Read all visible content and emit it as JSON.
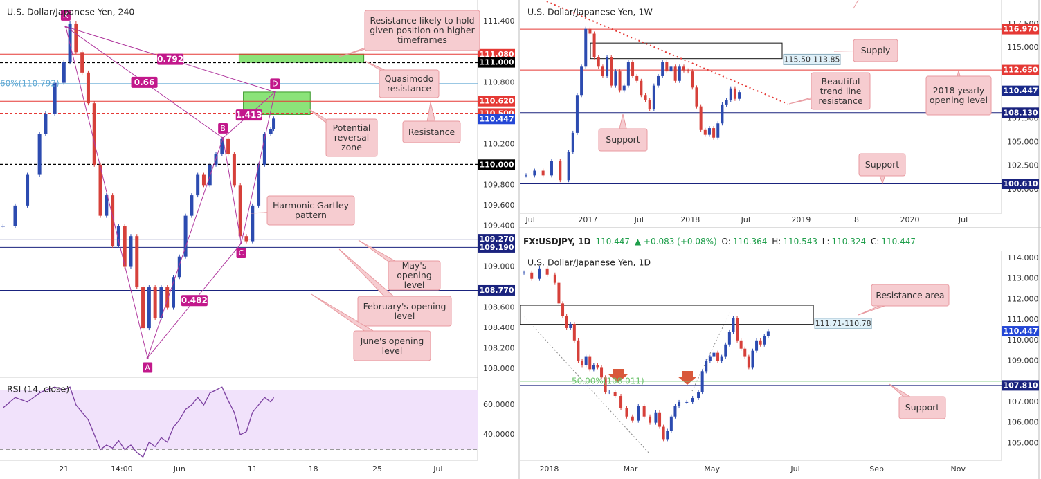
{
  "chart_data": [
    {
      "type": "candlestick",
      "title": "U.S. Dollar/Japanese Yen, 240",
      "x": [
        0,
        4,
        8,
        12,
        14,
        17,
        20,
        22,
        24,
        26,
        28,
        30,
        32,
        34,
        36,
        38,
        40,
        42,
        44,
        46,
        48,
        50,
        52,
        54,
        56,
        58,
        60,
        62,
        64,
        66,
        68,
        70,
        72,
        74,
        76,
        78,
        80,
        82,
        84,
        86,
        88,
        89
      ],
      "values": [
        109.4,
        109.6,
        109.9,
        110.3,
        110.5,
        110.8,
        111.0,
        111.38,
        111.1,
        110.9,
        110.6,
        110.0,
        109.5,
        109.7,
        109.2,
        109.4,
        109.0,
        109.3,
        108.8,
        108.4,
        108.8,
        108.5,
        108.8,
        108.6,
        108.9,
        109.1,
        109.5,
        109.7,
        109.9,
        109.8,
        110.0,
        110.1,
        110.25,
        110.1,
        109.8,
        109.3,
        109.25,
        109.6,
        110.0,
        110.3,
        110.35,
        110.45
      ],
      "xlim": [
        -1,
        156
      ],
      "ylim": [
        107.92,
        111.61
      ],
      "xticks": [
        {
          "value": 20,
          "label": "21"
        },
        {
          "value": 39,
          "label": "14:00"
        },
        {
          "value": 58,
          "label": "Jun"
        },
        {
          "value": 82,
          "label": "11"
        },
        {
          "value": 102,
          "label": "18"
        },
        {
          "value": 123,
          "label": "25"
        },
        {
          "value": 143,
          "label": "Jul"
        }
      ],
      "yticks": [
        {
          "value": 111.4,
          "label": "111.400"
        },
        {
          "value": 110.8,
          "label": "110.800"
        },
        {
          "value": 110.2,
          "label": "110.200"
        },
        {
          "value": 109.8,
          "label": "109.800"
        },
        {
          "value": 109.6,
          "label": "109.600"
        },
        {
          "value": 109.4,
          "label": "109.400"
        },
        {
          "value": 109.0,
          "label": "109.000"
        },
        {
          "value": 108.6,
          "label": "108.600"
        },
        {
          "value": 108.4,
          "label": "108.400"
        },
        {
          "value": 108.2,
          "label": "108.200"
        },
        {
          "value": 108.0,
          "label": "108.000"
        }
      ],
      "levels": [
        {
          "value": 111.08,
          "label": "111.080",
          "color": "#e53935"
        },
        {
          "value": 111.0,
          "label": "111.000",
          "color": "#000000",
          "dash": true
        },
        {
          "value": 110.62,
          "label": "110.620",
          "color": "#e53935"
        },
        {
          "value": 110.5,
          "label": "110.500",
          "color": "#e53935",
          "dash": true
        },
        {
          "value": 110.447,
          "label": "110.447",
          "color": "#2447d6",
          "line": false
        },
        {
          "value": 110.0,
          "label": "110.000",
          "color": "#000000",
          "dash": true
        },
        {
          "value": 109.27,
          "label": "109.270",
          "color": "#1a237e"
        },
        {
          "value": 109.19,
          "label": "109.190",
          "color": "#1a237e"
        },
        {
          "value": 108.77,
          "label": "108.770",
          "color": "#1a237e"
        }
      ],
      "fib": {
        "value": 110.792,
        "label": "60%(110.792)",
        "color": "#5fa8d3"
      },
      "zones": [
        {
          "from": 111.0,
          "to": 111.08,
          "x": [
            77.6,
            118.6
          ],
          "color": "#7ee06a"
        },
        {
          "from": 110.49,
          "to": 110.71,
          "x": [
            79,
            101
          ],
          "color": "#7ee06a"
        }
      ],
      "pattern": [
        {
          "label": "X",
          "x": 20.6,
          "y": 111.35
        },
        {
          "label": "A",
          "x": 47.5,
          "y": 108.11
        },
        {
          "label": "B",
          "x": 72.3,
          "y": 110.26
        },
        {
          "label": "C",
          "x": 78.3,
          "y": 109.23
        },
        {
          "label": "D",
          "x": 89.4,
          "y": 110.71
        }
      ],
      "ratios": [
        0.792,
        0.66,
        1.413,
        0.482
      ],
      "annotations": [
        "Resistance likely to hold given position on higher timeframes",
        "Quasimodo resistance",
        "Potential reversal zone",
        "Resistance",
        "Harmonic Gartley pattern",
        "May's opening level",
        "February's opening level",
        "June's opening level"
      ]
    },
    {
      "type": "line",
      "title": "RSI (14, close)",
      "x": [
        0,
        4,
        8,
        12,
        14,
        17,
        20,
        22,
        24,
        26,
        28,
        30,
        32,
        34,
        36,
        38,
        40,
        42,
        44,
        46,
        48,
        50,
        52,
        54,
        56,
        58,
        60,
        62,
        64,
        66,
        68,
        70,
        72,
        74,
        76,
        78,
        80,
        82,
        84,
        86,
        88,
        89
      ],
      "values": [
        58,
        65,
        62,
        68,
        70,
        72,
        70,
        72,
        60,
        55,
        50,
        40,
        30,
        33,
        31,
        36,
        30,
        33,
        28,
        25,
        35,
        32,
        38,
        35,
        45,
        50,
        57,
        60,
        65,
        60,
        68,
        70,
        72,
        63,
        55,
        40,
        42,
        55,
        60,
        65,
        62,
        65
      ],
      "color": "#7b3fa0",
      "band": [
        30,
        70
      ],
      "xlim": [
        -1,
        156
      ],
      "ylim": [
        22.8,
        78.6
      ],
      "yticks": [
        {
          "value": 60,
          "label": "60.0000"
        },
        {
          "value": 40,
          "label": "40.0000"
        }
      ]
    },
    {
      "type": "candlestick",
      "title": "U.S. Dollar/Japanese Yen, 1W",
      "x": [
        0,
        4,
        8,
        12,
        16,
        20,
        22,
        24,
        26,
        28,
        30,
        32,
        34,
        36,
        38,
        40,
        42,
        44,
        46,
        48,
        50,
        52,
        54,
        56,
        58,
        60,
        62,
        64,
        66,
        68,
        70,
        72,
        74,
        76,
        78,
        80,
        82,
        84,
        86,
        88,
        90,
        92,
        94,
        96,
        98,
        100
      ],
      "values": [
        101.5,
        102,
        101.5,
        103,
        101,
        104,
        106,
        110,
        113,
        117,
        116.5,
        114,
        113,
        112,
        114,
        111,
        112.5,
        110.5,
        111,
        113.5,
        112,
        111.5,
        110,
        109.5,
        108.5,
        111,
        112,
        113.5,
        112.5,
        113,
        111.5,
        113,
        112.6,
        112.5,
        110.8,
        108.8,
        106.3,
        105.8,
        106.5,
        105.5,
        107,
        109,
        109.5,
        110.7,
        109.6,
        110.3
      ],
      "xlim": [
        -2.6,
        223
      ],
      "ylim": [
        97.5,
        120.05
      ],
      "xticks": [
        {
          "value": 2,
          "label": "Jul"
        },
        {
          "value": 29,
          "label": "2017"
        },
        {
          "value": 53,
          "label": "Jul"
        },
        {
          "value": 77,
          "label": "2018"
        },
        {
          "value": 103,
          "label": "Jul"
        },
        {
          "value": 129,
          "label": "2019"
        },
        {
          "value": 155,
          "label": "8"
        },
        {
          "value": 180,
          "label": "2020"
        },
        {
          "value": 205,
          "label": "Jul"
        }
      ],
      "yticks": [
        {
          "value": 117.5,
          "label": "117.500"
        },
        {
          "value": 115,
          "label": "115.000"
        },
        {
          "value": 107.5,
          "label": "107.500"
        },
        {
          "value": 105,
          "label": "105.000"
        },
        {
          "value": 102.5,
          "label": "102.500"
        },
        {
          "value": 100,
          "label": "100.000"
        }
      ],
      "levels": [
        {
          "value": 116.97,
          "label": "116.970",
          "color": "#e53935"
        },
        {
          "value": 112.65,
          "label": "112.650",
          "color": "#e53935"
        },
        {
          "value": 110.447,
          "label": "110.447",
          "color": "#1a2a8a",
          "line": false
        },
        {
          "value": 108.13,
          "label": "108.130",
          "color": "#1a237e"
        },
        {
          "value": 100.61,
          "label": "100.610",
          "color": "#1a237e"
        }
      ],
      "zones": [
        {
          "from": 113.85,
          "to": 115.5,
          "x": [
            30.2,
            120.1
          ],
          "color": "#ffffff",
          "label": "115.50-113.85"
        }
      ],
      "trendline": {
        "from": [
          9.7,
          119.9
        ],
        "to": [
          122.7,
          109.07
        ],
        "color": "#e53935"
      },
      "annotations": [
        "Supply",
        "Beautiful trend line resistance",
        "2018 yearly opening level",
        "Support",
        "Support"
      ]
    },
    {
      "type": "candlestick",
      "title": "U.S. Dollar/Japanese Yen, 1D",
      "header": {
        "symbol": "FX:USDJPY, 1D",
        "last": "110.447",
        "change": "▲ +0.083 (+0.08%)",
        "open": "O:",
        "open_value": "110.364",
        "high": "H:",
        "high_value": "110.543",
        "low": "L:",
        "low_value": "110.324",
        "close": "C:",
        "close_value": "110.447"
      },
      "x": [
        0,
        4,
        8,
        12,
        16,
        18,
        20,
        22,
        24,
        26,
        28,
        30,
        32,
        34,
        36,
        38,
        40,
        42,
        44,
        47,
        50,
        53,
        56,
        59,
        62,
        65,
        68,
        70,
        72,
        74,
        76,
        78,
        80,
        84,
        87,
        90,
        92,
        94,
        96,
        98,
        100,
        102,
        104,
        106,
        108,
        110,
        112,
        114,
        116,
        118,
        120,
        122,
        124,
        126
      ],
      "values": [
        113.3,
        113.0,
        113.5,
        113.2,
        112.8,
        111.8,
        111.2,
        110.6,
        110.8,
        110.0,
        109.0,
        108.8,
        109.2,
        108.6,
        108.8,
        108.7,
        108.2,
        107.5,
        107.5,
        107.3,
        106.7,
        106.3,
        106.1,
        106.8,
        106.3,
        106.0,
        106.5,
        105.8,
        105.2,
        105.6,
        106.3,
        106.8,
        107.0,
        107.0,
        107.2,
        107.5,
        108.5,
        109.0,
        109.2,
        109.4,
        109.0,
        109.2,
        109.8,
        110.4,
        111.1,
        110.0,
        109.6,
        109.2,
        108.7,
        109.5,
        110.0,
        109.8,
        110.2,
        110.45
      ],
      "xlim": [
        -1.8,
        246.4
      ],
      "ylim": [
        104.17,
        114.37
      ],
      "xticks": [
        {
          "value": 13,
          "label": "2018"
        },
        {
          "value": 55,
          "label": "Mar"
        },
        {
          "value": 97,
          "label": "May"
        },
        {
          "value": 140,
          "label": "Jul"
        },
        {
          "value": 182,
          "label": "Sep"
        },
        {
          "value": 224,
          "label": "Nov"
        }
      ],
      "yticks": [
        {
          "value": 114,
          "label": "114.000"
        },
        {
          "value": 113,
          "label": "113.000"
        },
        {
          "value": 112,
          "label": "112.000"
        },
        {
          "value": 111,
          "label": "111.000"
        },
        {
          "value": 110,
          "label": "110.000"
        },
        {
          "value": 109,
          "label": "109.000"
        },
        {
          "value": 107,
          "label": "107.000"
        },
        {
          "value": 106,
          "label": "106.000"
        },
        {
          "value": 105,
          "label": "105.000"
        }
      ],
      "levels": [
        {
          "value": 110.447,
          "label": "110.447",
          "color": "#2447d6",
          "line": false
        },
        {
          "value": 107.81,
          "label": "107.810",
          "color": "#1a237e"
        }
      ],
      "fib": {
        "value": 108.011,
        "label": "50.00%(108.011)",
        "color": "#6cc36c"
      },
      "zones": [
        {
          "from": 110.78,
          "to": 111.71,
          "x": [
            -1.8,
            149.3
          ],
          "color": "#ffffff",
          "label": "111.71-110.78"
        }
      ],
      "annotations": [
        "Resistance area",
        "Support"
      ]
    }
  ]
}
